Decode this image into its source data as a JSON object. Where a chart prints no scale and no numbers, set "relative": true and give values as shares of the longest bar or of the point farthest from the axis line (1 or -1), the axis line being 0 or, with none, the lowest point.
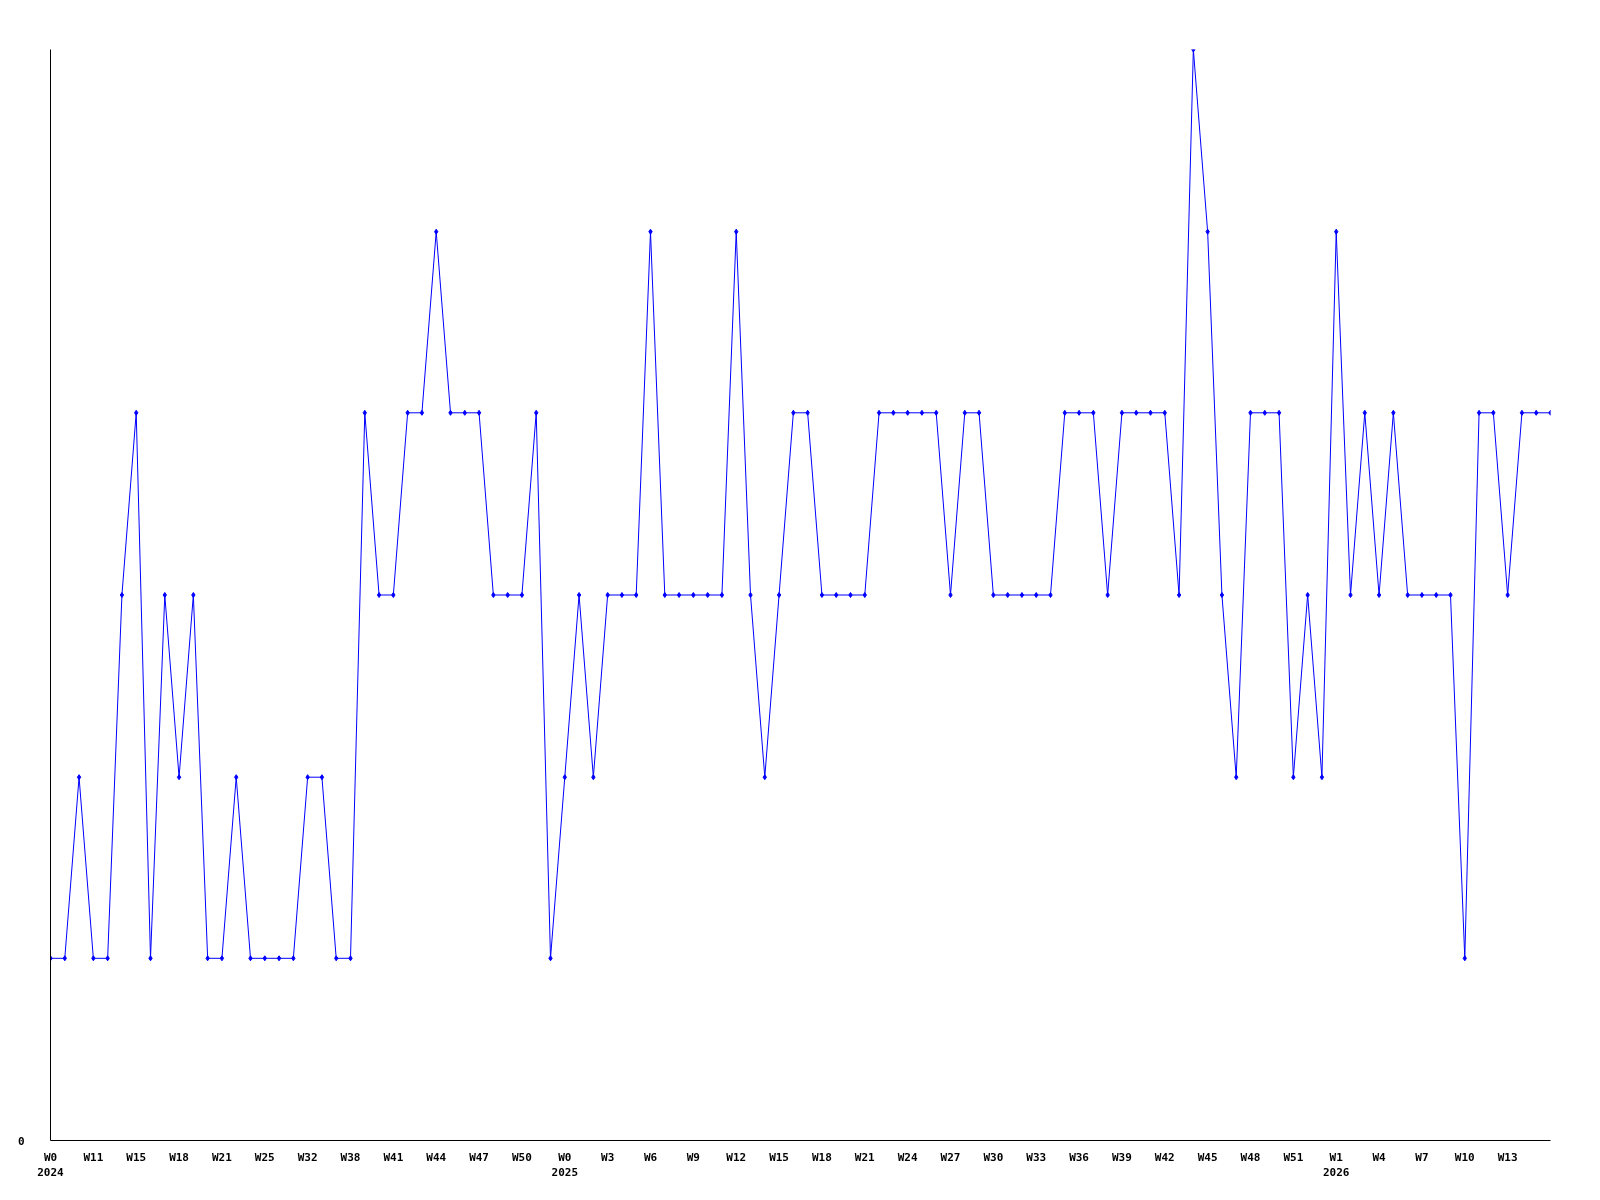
{
  "chart_data": {
    "type": "line",
    "relative": true,
    "marker": "diamond",
    "annotations": [
      "0"
    ],
    "categories": [
      "W0\n2024",
      null,
      null,
      "W11",
      null,
      null,
      "W15",
      null,
      null,
      "W18",
      null,
      null,
      "W21",
      null,
      null,
      "W25",
      null,
      null,
      "W32",
      null,
      null,
      "W38",
      null,
      null,
      "W41",
      null,
      null,
      "W44",
      null,
      null,
      "W47",
      null,
      null,
      "W50",
      null,
      null,
      "W0\n2025",
      null,
      null,
      "W3",
      null,
      null,
      "W6",
      null,
      null,
      "W9",
      null,
      null,
      "W12",
      null,
      null,
      "W15",
      null,
      null,
      "W18",
      null,
      null,
      "W21",
      null,
      null,
      "W24",
      null,
      null,
      "W27",
      null,
      null,
      "W30",
      null,
      null,
      "W33",
      null,
      null,
      "W36",
      null,
      null,
      "W39",
      null,
      null,
      "W42",
      null,
      null,
      "W45",
      null,
      null,
      "W48",
      null,
      null,
      "W51",
      null,
      null,
      "W1\n2026",
      null,
      null,
      "W4",
      null,
      null,
      "W7",
      null,
      null,
      "W10",
      null,
      null,
      "W13",
      null,
      null,
      null
    ],
    "series": [
      {
        "color": "#0000ff",
        "values": [
          0.167,
          0.167,
          0.333,
          0.167,
          0.167,
          0.5,
          0.667,
          0.167,
          0.5,
          0.333,
          0.5,
          0.167,
          0.167,
          0.333,
          0.167,
          0.167,
          0.167,
          0.167,
          0.333,
          0.333,
          0.167,
          0.167,
          0.667,
          0.5,
          0.5,
          0.667,
          0.667,
          0.833,
          0.667,
          0.667,
          0.667,
          0.5,
          0.5,
          0.5,
          0.667,
          0.167,
          0.333,
          0.5,
          0.333,
          0.5,
          0.5,
          0.5,
          0.833,
          0.5,
          0.5,
          0.5,
          0.5,
          0.5,
          0.833,
          0.5,
          0.333,
          0.5,
          0.667,
          0.667,
          0.5,
          0.5,
          0.5,
          0.5,
          0.667,
          0.667,
          0.667,
          0.667,
          0.667,
          0.5,
          0.667,
          0.667,
          0.5,
          0.5,
          0.5,
          0.5,
          0.5,
          0.667,
          0.667,
          0.667,
          0.5,
          0.667,
          0.667,
          0.667,
          0.667,
          0.5,
          1,
          0.833,
          0.5,
          0.333,
          0.667,
          0.667,
          0.667,
          0.333,
          0.5,
          0.333,
          0.833,
          0.5,
          0.667,
          0.5,
          0.667,
          0.5,
          0.5,
          0.5,
          0.5,
          0.167,
          0.667,
          0.667,
          0.5,
          0.667,
          0.667,
          0.667
        ]
      }
    ]
  }
}
